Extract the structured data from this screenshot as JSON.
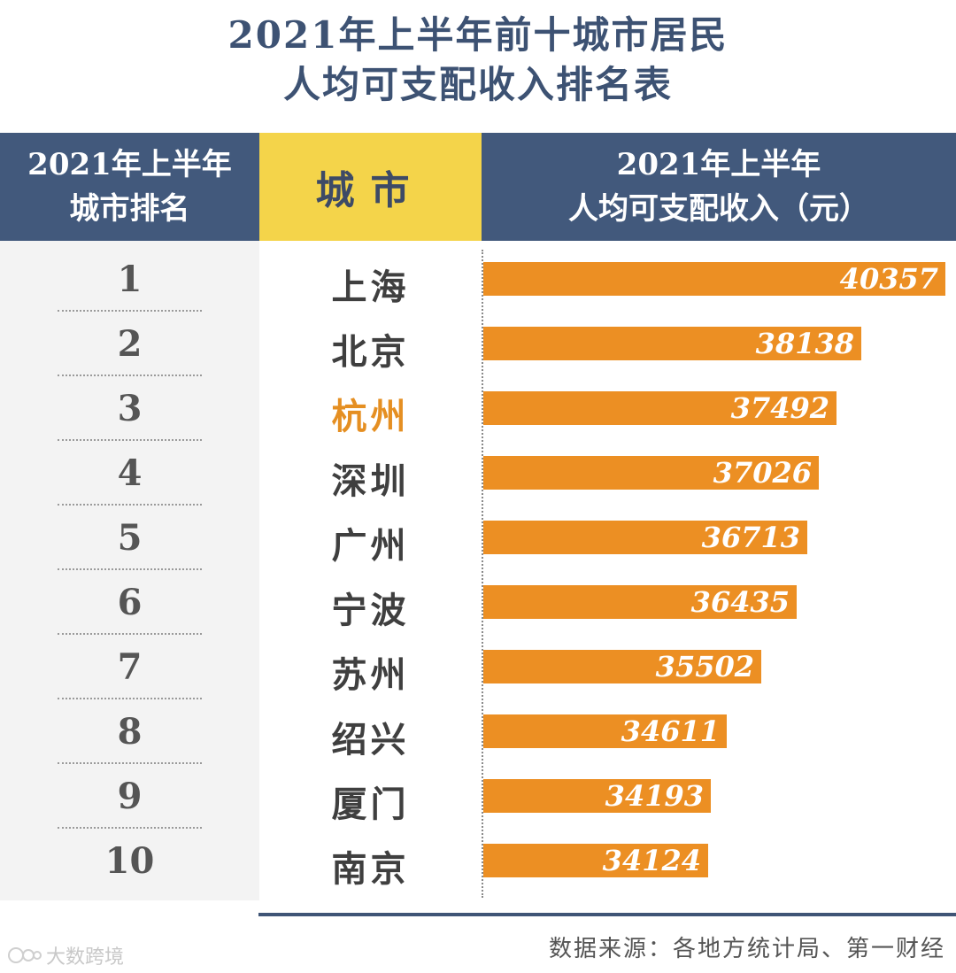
{
  "title": {
    "line1": "2021年上半年前十城市居民",
    "line2": "人均可支配收入排名表"
  },
  "header": {
    "rank_line1": "2021年上半年",
    "rank_line2": "城市排名",
    "city": "城市",
    "income_line1": "2021年上半年",
    "income_line2": "人均可支配收入（元）"
  },
  "colors": {
    "header_blue": "#42597c",
    "header_yellow": "#f4d44a",
    "bar_orange": "#ec8f23",
    "highlight_city": "#e58f22"
  },
  "chart_data": {
    "type": "bar",
    "orientation": "horizontal",
    "categories": [
      "上海",
      "北京",
      "杭州",
      "深圳",
      "广州",
      "宁波",
      "苏州",
      "绍兴",
      "厦门",
      "南京"
    ],
    "ranks": [
      "1",
      "2",
      "3",
      "4",
      "5",
      "6",
      "7",
      "8",
      "9",
      "10"
    ],
    "values": [
      40357,
      38138,
      37492,
      37026,
      36713,
      36435,
      35502,
      34611,
      34193,
      34124
    ],
    "highlight_category": "杭州"
  },
  "source": "数据来源：各地方统计局、第一财经",
  "watermark": "大数跨境"
}
